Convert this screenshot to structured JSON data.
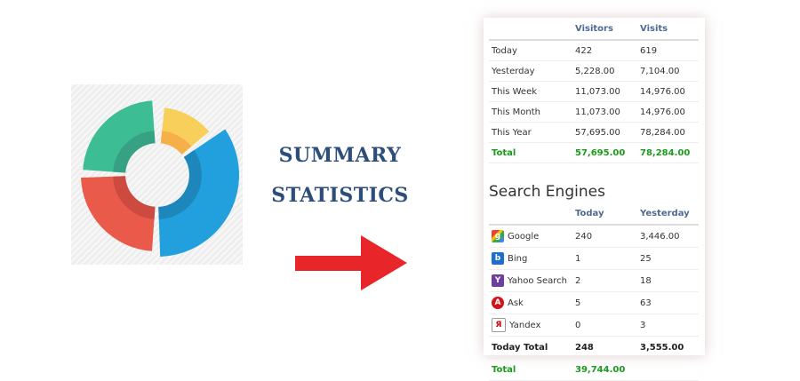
{
  "heading": {
    "line1": "SUMMARY",
    "line2": "STATISTICS"
  },
  "colors": {
    "green": "#3dbd93",
    "yellow": "#f8cf5a",
    "blue": "#22a0dd",
    "red": "#ea5a4b",
    "arrow": "#e8262a",
    "total": "#1a9c1a"
  },
  "summary": {
    "headers": [
      "",
      "Visitors",
      "Visits"
    ],
    "rows": [
      {
        "label": "Today",
        "visitors": "422",
        "visits": "619"
      },
      {
        "label": "Yesterday",
        "visitors": "5,228.00",
        "visits": "7,104.00"
      },
      {
        "label": "This Week",
        "visitors": "11,073.00",
        "visits": "14,976.00"
      },
      {
        "label": "This Month",
        "visitors": "11,073.00",
        "visits": "14,976.00"
      },
      {
        "label": "This Year",
        "visitors": "57,695.00",
        "visits": "78,284.00"
      }
    ],
    "total": {
      "label": "Total",
      "visitors": "57,695.00",
      "visits": "78,284.00"
    }
  },
  "search_engines": {
    "title": "Search Engines",
    "headers": [
      "",
      "Today",
      "Yesterday"
    ],
    "rows": [
      {
        "icon": "google-icon",
        "name": "Google",
        "today": "240",
        "yesterday": "3,446.00"
      },
      {
        "icon": "bing-icon",
        "name": "Bing",
        "today": "1",
        "yesterday": "25"
      },
      {
        "icon": "yahoo-icon",
        "name": "Yahoo Search",
        "today": "2",
        "yesterday": "18"
      },
      {
        "icon": "ask-icon",
        "name": "Ask",
        "today": "5",
        "yesterday": "63"
      },
      {
        "icon": "yandex-icon",
        "name": "Yandex",
        "today": "0",
        "yesterday": "3"
      }
    ],
    "today_total": {
      "label": "Today Total",
      "today": "248",
      "yesterday": "3,555.00"
    },
    "total": {
      "label": "Total",
      "today": "39,744.00"
    }
  }
}
